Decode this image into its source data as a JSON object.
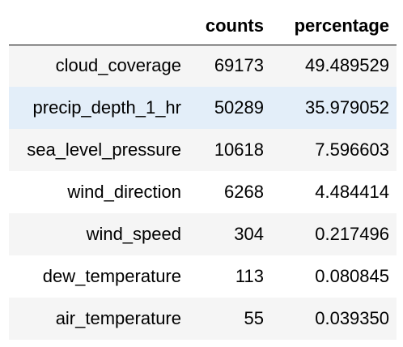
{
  "table": {
    "columns": [
      "",
      "counts",
      "percentage"
    ],
    "rows": [
      {
        "index": "cloud_coverage",
        "counts": "69173",
        "percentage": "49.489529"
      },
      {
        "index": "precip_depth_1_hr",
        "counts": "50289",
        "percentage": "35.979052"
      },
      {
        "index": "sea_level_pressure",
        "counts": "10618",
        "percentage": "7.596603"
      },
      {
        "index": "wind_direction",
        "counts": "6268",
        "percentage": "4.484414"
      },
      {
        "index": "wind_speed",
        "counts": "304",
        "percentage": "0.217496"
      },
      {
        "index": "dew_temperature",
        "counts": "113",
        "percentage": "0.080845"
      },
      {
        "index": "air_temperature",
        "counts": "55",
        "percentage": "0.039350"
      }
    ],
    "hovered_row": 1
  },
  "colors": {
    "stripe": "#f5f5f5",
    "hover": "#e3eef9",
    "header_rule": "#000000"
  }
}
